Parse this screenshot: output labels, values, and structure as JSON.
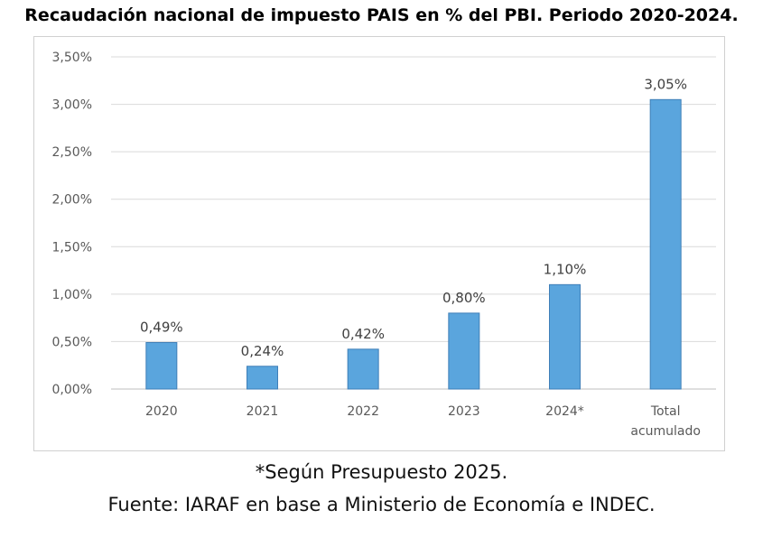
{
  "chart_data": {
    "type": "bar",
    "title": "Recaudación nacional de impuesto PAIS en % del PBI. Periodo 2020-2024.",
    "categories": [
      "2020",
      "2021",
      "2022",
      "2023",
      "2024*",
      "Total acumulado"
    ],
    "values": [
      0.49,
      0.24,
      0.42,
      0.8,
      1.1,
      3.05
    ],
    "data_labels": [
      "0,49%",
      "0,24%",
      "0,42%",
      "0,80%",
      "1,10%",
      "3,05%"
    ],
    "y_ticks": [
      "0,00%",
      "0,50%",
      "1,00%",
      "1,50%",
      "2,00%",
      "2,50%",
      "3,00%",
      "3,50%"
    ],
    "ylim": [
      0,
      3.5
    ],
    "xlabel": "",
    "ylabel": "",
    "grid": true,
    "bar_color": "#5aa5dd",
    "bar_edge_color": "#3f7fb8",
    "grid_color": "#d9d9d9"
  },
  "footer": {
    "note": "*Según Presupuesto 2025.",
    "source": "Fuente: IARAF en base a Ministerio de Economía e INDEC."
  }
}
